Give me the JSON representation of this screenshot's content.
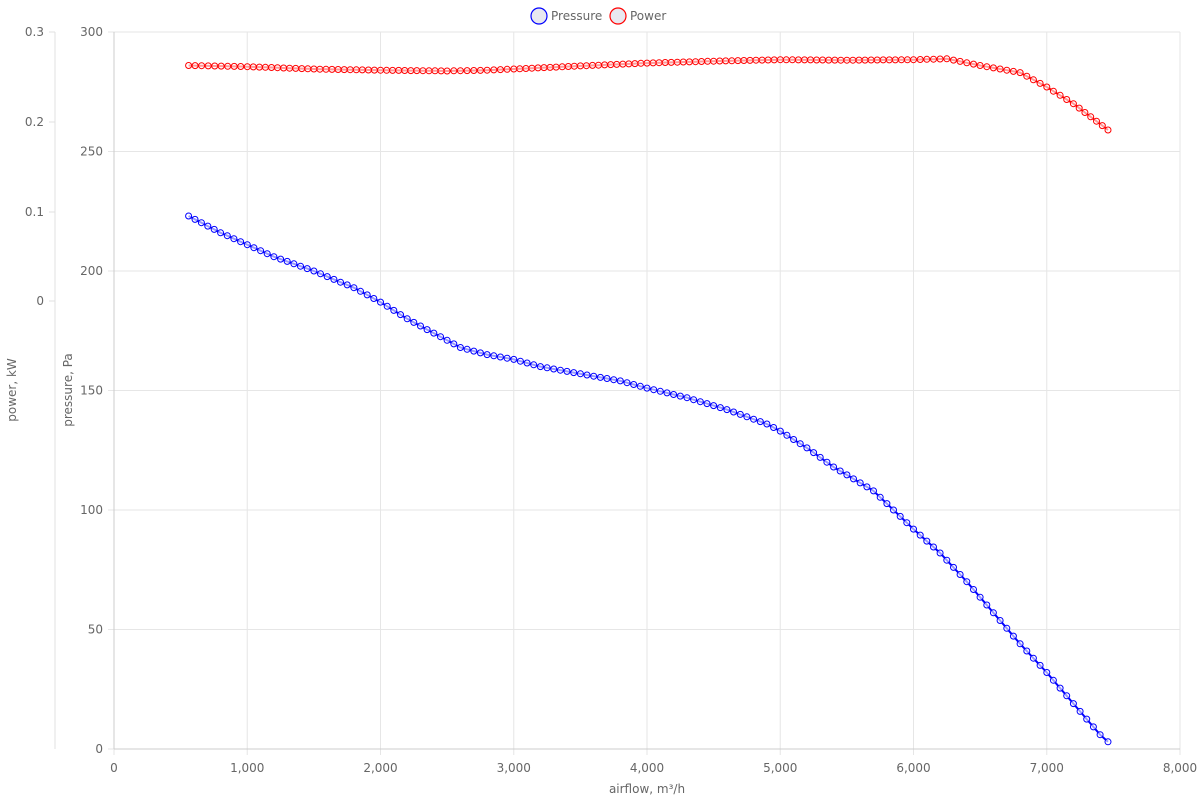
{
  "chart_data": {
    "type": "line",
    "xlabel": "airflow, m³/h",
    "ylabel_left_outer": "power, kW",
    "ylabel_left_inner": "pressure, Pa",
    "xlim": [
      0,
      8000
    ],
    "x_ticks": [
      "0",
      "1,000",
      "2,000",
      "3,000",
      "4,000",
      "5,000",
      "6,000",
      "7,000",
      "8,000"
    ],
    "x_tick_values": [
      0,
      1000,
      2000,
      3000,
      4000,
      5000,
      6000,
      7000,
      8000
    ],
    "pressure_axis": {
      "ylim": [
        0,
        300
      ],
      "ticks": [
        "0",
        "50",
        "100",
        "150",
        "200",
        "250",
        "300"
      ],
      "tick_values": [
        0,
        50,
        100,
        150,
        200,
        250,
        300
      ]
    },
    "power_axis": {
      "ticks": [
        "0.3",
        "0.2",
        "0.1",
        "0"
      ],
      "tick_values": [
        0.3,
        0.2,
        0.1,
        0.0
      ]
    },
    "grid": true,
    "legend": {
      "placement": "top-center",
      "items": [
        {
          "label": "Pressure",
          "color": "#0000ff"
        },
        {
          "label": "Power",
          "color": "#ff0000"
        }
      ]
    },
    "series": [
      {
        "name": "Pressure",
        "color": "#0000ff",
        "axis": "pressure",
        "x": [
          560,
          800,
          1000,
          1200,
          1500,
          1800,
          2000,
          2200,
          2400,
          2600,
          2800,
          3000,
          3200,
          3500,
          3800,
          4000,
          4300,
          4600,
          4900,
          5000,
          5200,
          5400,
          5700,
          6000,
          6200,
          6400,
          6600,
          6800,
          7000,
          7200,
          7400,
          7460
        ],
        "y": [
          223,
          216,
          211,
          206,
          200,
          193,
          187,
          180,
          174,
          168,
          165,
          163,
          160,
          157,
          154,
          151,
          147,
          142,
          136,
          133,
          126,
          118,
          108,
          92,
          82,
          70,
          57,
          44,
          32,
          19,
          6,
          3
        ]
      },
      {
        "name": "Power",
        "color": "#ff0000",
        "axis": "pressure",
        "x": [
          560,
          1000,
          1500,
          2000,
          2500,
          2800,
          3000,
          3500,
          4000,
          4500,
          5000,
          5500,
          6000,
          6250,
          6500,
          6800,
          7000,
          7200,
          7460
        ],
        "y": [
          286,
          285.5,
          284.5,
          284,
          283.7,
          284,
          284.5,
          285.8,
          287,
          287.8,
          288.4,
          288.2,
          288.4,
          288.8,
          286,
          283,
          277,
          270,
          259
        ]
      }
    ]
  }
}
